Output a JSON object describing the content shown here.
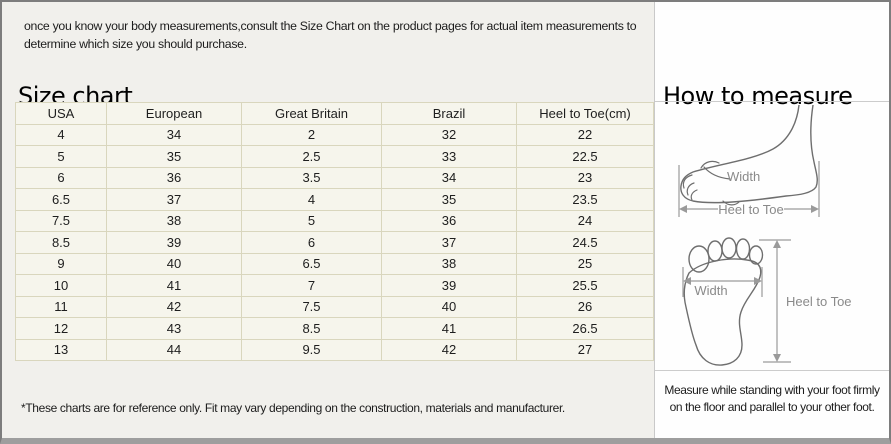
{
  "intro": {
    "line1": "once you know your body measurements,consult the Size Chart on the product pages for actual item measurements to",
    "line2": "determine which size you should purchase."
  },
  "left": {
    "title": "Size chart",
    "footnote": "*These charts are for reference only. Fit may vary depending on the construction, materials and manufacturer."
  },
  "size_table": {
    "columns": [
      "USA",
      "European",
      "Great Britain",
      "Brazil",
      "Heel to Toe(cm)"
    ],
    "rows": [
      [
        "4",
        "34",
        "2",
        "32",
        "22"
      ],
      [
        "5",
        "35",
        "2.5",
        "33",
        "22.5"
      ],
      [
        "6",
        "36",
        "3.5",
        "34",
        "23"
      ],
      [
        "6.5",
        "37",
        "4",
        "35",
        "23.5"
      ],
      [
        "7.5",
        "38",
        "5",
        "36",
        "24"
      ],
      [
        "8.5",
        "39",
        "6",
        "37",
        "24.5"
      ],
      [
        "9",
        "40",
        "6.5",
        "38",
        "25"
      ],
      [
        "10",
        "41",
        "7",
        "39",
        "25.5"
      ],
      [
        "11",
        "42",
        "7.5",
        "40",
        "26"
      ],
      [
        "12",
        "43",
        "8.5",
        "41",
        "26.5"
      ],
      [
        "13",
        "44",
        "9.5",
        "42",
        "27"
      ]
    ]
  },
  "measure": {
    "title": "How to measure",
    "side_view": {
      "width_label": "Width",
      "length_label": "Heel to Toe"
    },
    "top_view": {
      "width_label": "Width",
      "length_label": "Heel to Toe"
    },
    "note_line1": "Measure while standing with your foot firmly",
    "note_line2": "on the floor and parallel to your other foot."
  },
  "colors": {
    "left_panel_bg": "#f1f0ec",
    "right_panel_bg": "#fefefe",
    "table_cell_bg": "#f6f5ec",
    "table_border": "#d9d6bd",
    "outer_border": "#7d7d7d",
    "diagram_stroke": "#6e6e6e",
    "measure_gray": "#9a9a9a",
    "label_gray": "#8a8a8a"
  }
}
